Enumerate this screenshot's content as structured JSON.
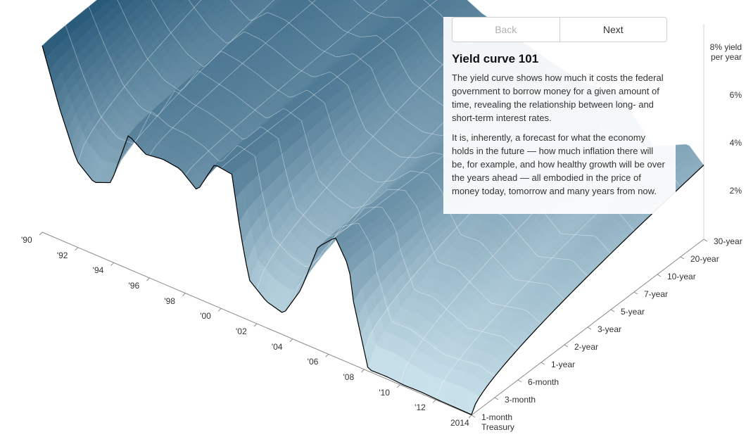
{
  "nav": {
    "back_label": "Back",
    "next_label": "Next"
  },
  "panel": {
    "title": "Yield curve 101",
    "para1": "The yield curve shows how much it costs the federal government to borrow money for a given amount of time, revealing the relationship between long- and short-term interest rates.",
    "para2": "It is, inherently, a forecast for what the economy holds in the future — how much inflation there will be, for example, and how healthy growth will be over the years ahead — all embodied in the price of money today, tomorrow and many years from now."
  },
  "chart": {
    "type": "3d-surface",
    "background_color": "#ffffff",
    "surface_color_top": "#2a5a7a",
    "surface_color_bottom": "#cfe6ef",
    "grid_line_color": "#ffffff",
    "axis_line_color": "#888888",
    "front_curve_color": "#000000",
    "front_curve_width": 1.2,
    "text_color": "#333333",
    "label_fontsize": 12,
    "time_axis": {
      "labels": [
        "'90",
        "'92",
        "'94",
        "'96",
        "'98",
        "'00",
        "'02",
        "'04",
        "'06",
        "'08",
        "'10",
        "'12",
        "2014"
      ]
    },
    "maturity_axis": {
      "labels": [
        "1-month",
        "3-month",
        "6-month",
        "1-year",
        "2-year",
        "3-year",
        "5-year",
        "7-year",
        "10-year",
        "20-year",
        "30-year"
      ],
      "bottom_label_suffix": "Treasury"
    },
    "yield_axis": {
      "ticks": [
        2,
        4,
        6,
        8
      ],
      "tick_labels": [
        "2%",
        "4%",
        "6%",
        "8% yield"
      ],
      "top_label_suffix": "per year",
      "ylim": [
        0,
        9
      ]
    },
    "series_1month": {
      "maturity": "1-month",
      "years": [
        1990,
        1991,
        1992,
        1993,
        1994,
        1995,
        1996,
        1997,
        1998,
        1999,
        2000,
        2001,
        2001.5,
        2002,
        2003,
        2004,
        2005,
        2006,
        2007,
        2007.8,
        2008,
        2008.9,
        2009,
        2010,
        2011,
        2012,
        2013,
        2014,
        2014.9
      ],
      "values": [
        7.8,
        5.5,
        3.6,
        3.0,
        3.3,
        5.6,
        5.1,
        5.2,
        5.1,
        4.5,
        5.9,
        5.8,
        3.5,
        1.7,
        1.1,
        0.9,
        2.2,
        4.3,
        5.0,
        4.0,
        2.8,
        0.1,
        0.08,
        0.1,
        0.05,
        0.07,
        0.04,
        0.03,
        0.02
      ]
    },
    "series_30year": {
      "maturity": "30-year",
      "years": [
        1990,
        1992,
        1994,
        1996,
        1998,
        2000,
        2002,
        2004,
        2006,
        2008,
        2010,
        2012,
        2014,
        2014.9
      ],
      "values": [
        8.2,
        7.7,
        6.4,
        6.7,
        5.9,
        6.2,
        5.5,
        5.1,
        4.7,
        4.4,
        4.6,
        3.0,
        3.7,
        3.1
      ]
    },
    "front_curve_2014": {
      "maturities": [
        "1-month",
        "3-month",
        "6-month",
        "1-year",
        "2-year",
        "3-year",
        "5-year",
        "7-year",
        "10-year",
        "20-year",
        "30-year"
      ],
      "values": [
        0.02,
        0.03,
        0.07,
        0.15,
        0.55,
        1.0,
        1.65,
        2.1,
        2.4,
        2.9,
        3.1
      ]
    }
  }
}
